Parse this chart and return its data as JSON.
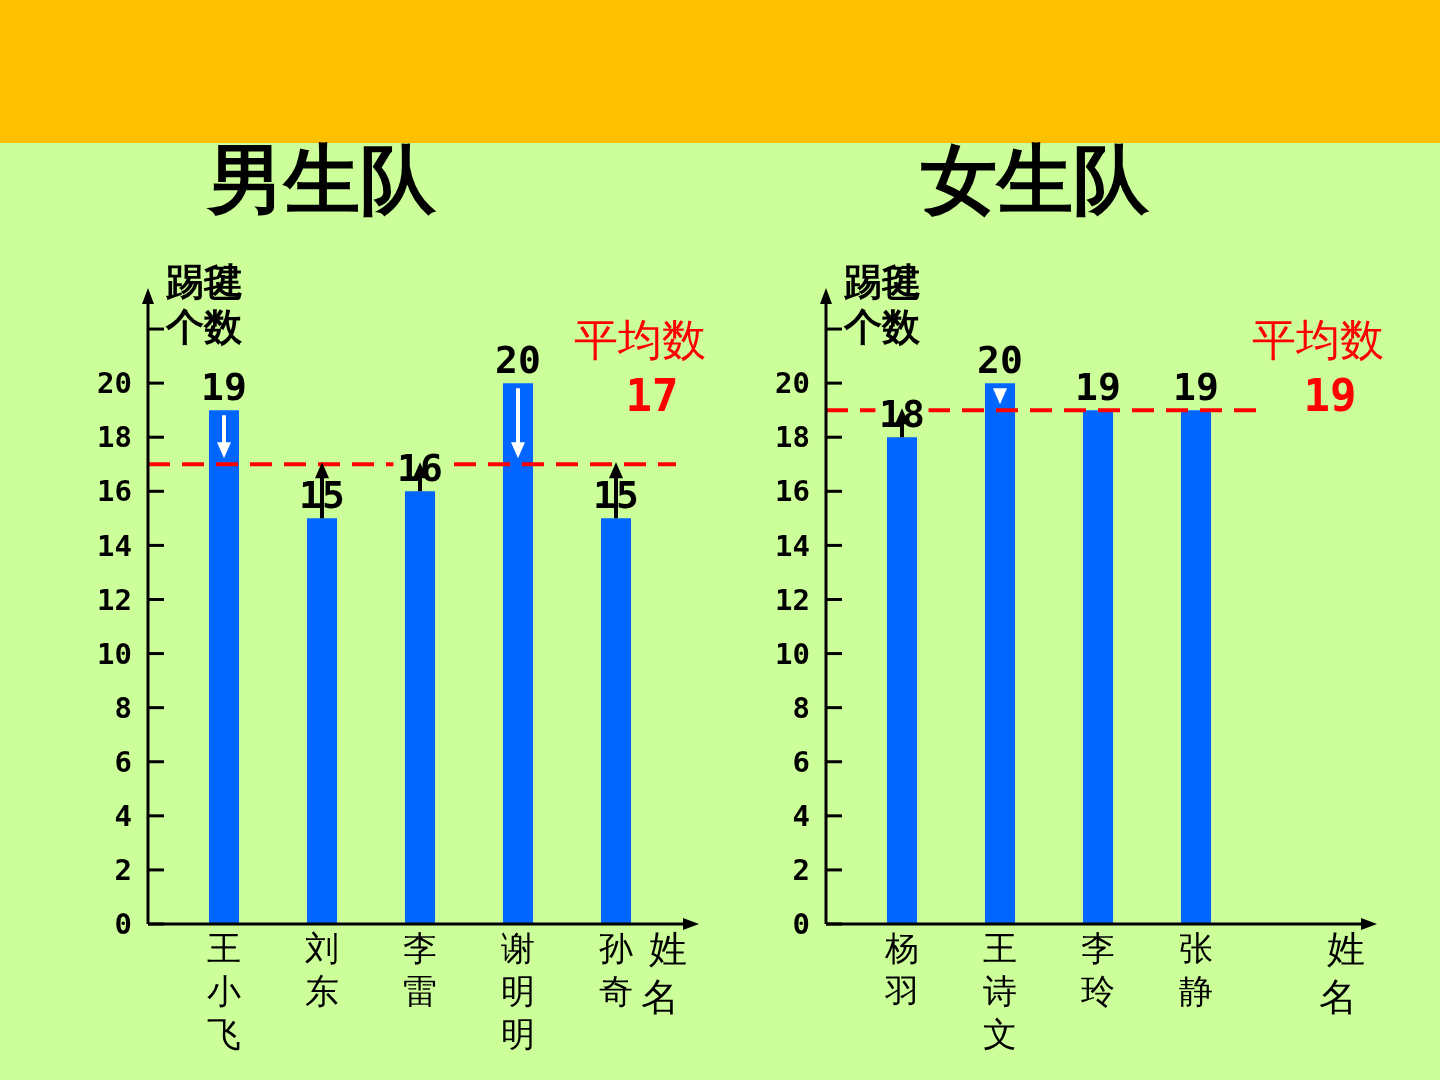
{
  "chart_data": [
    {
      "type": "bar",
      "title": "男生队",
      "xlabel": "姓名",
      "ylabel": "踢毽个数",
      "categories": [
        "王小飞",
        "刘东",
        "李雷",
        "谢明明",
        "孙奇"
      ],
      "values": [
        19,
        15,
        16,
        20,
        15
      ],
      "color": "#0066ff",
      "ylim": [
        0,
        23
      ],
      "yticks": [
        0,
        2,
        4,
        6,
        8,
        10,
        12,
        14,
        16,
        18,
        20,
        {
          "value": 22,
          "label": null
        }
      ],
      "data_labels": true,
      "ref_lines": [
        {
          "axis": "y",
          "value": 17,
          "label": "平均数 17",
          "color": "#ff0000",
          "line_style": "dashed"
        }
      ]
    },
    {
      "type": "bar",
      "title": "女生队",
      "xlabel": "姓名",
      "ylabel": "踢毽个数",
      "categories": [
        "杨羽",
        "王诗文",
        "李玲",
        "张静"
      ],
      "values": [
        18,
        20,
        19,
        19
      ],
      "color": "#0066ff",
      "ylim": [
        0,
        23
      ],
      "yticks": [
        0,
        2,
        4,
        6,
        8,
        10,
        12,
        14,
        16,
        18,
        20,
        {
          "value": 22,
          "label": null
        }
      ],
      "data_labels": true,
      "ref_lines": [
        {
          "axis": "y",
          "value": 19,
          "label": "平均数 19",
          "color": "#ff0000",
          "line_style": "dashed"
        }
      ]
    }
  ]
}
